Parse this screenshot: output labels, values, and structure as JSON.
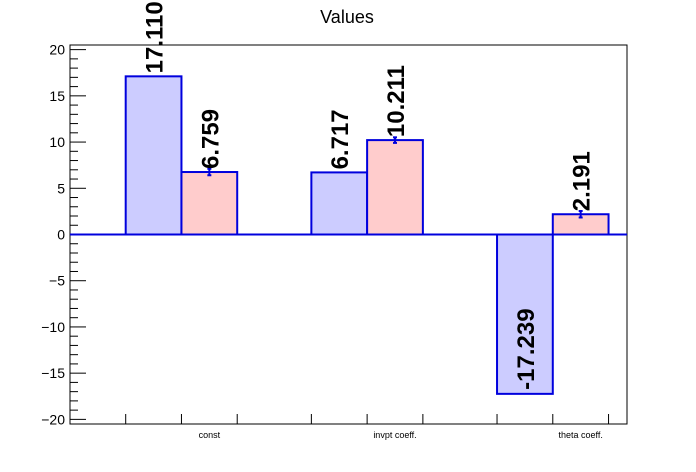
{
  "chart_data": {
    "type": "bar",
    "title": "Values",
    "categories": [
      "const",
      "invpt coeff.",
      "theta coeff."
    ],
    "series": [
      {
        "values": [
          17.11,
          6.717,
          -17.239
        ],
        "errors": [
          0,
          0,
          0
        ]
      },
      {
        "values": [
          6.759,
          10.211,
          2.191
        ],
        "errors": [
          0.35,
          0.3,
          0.35
        ]
      }
    ],
    "value_labels": [
      [
        "17.110",
        "6.717",
        "-17.239"
      ],
      [
        "6.759",
        "10.211",
        "2.191"
      ]
    ],
    "ylim": [
      -20.5,
      20.5
    ],
    "yticks": [
      -20,
      -15,
      -10,
      -5,
      0,
      5,
      10,
      15,
      20
    ],
    "ytick_labels": [
      "−20",
      "−15",
      "−10",
      "−5",
      "0",
      "5",
      "10",
      "15",
      "20"
    ],
    "xlabel": "",
    "ylabel": "",
    "grid": false,
    "colors": {
      "series_fill": [
        "#ccccff",
        "#ffcccc"
      ],
      "bar_stroke": "#0000dd",
      "axis": "#000000"
    }
  }
}
